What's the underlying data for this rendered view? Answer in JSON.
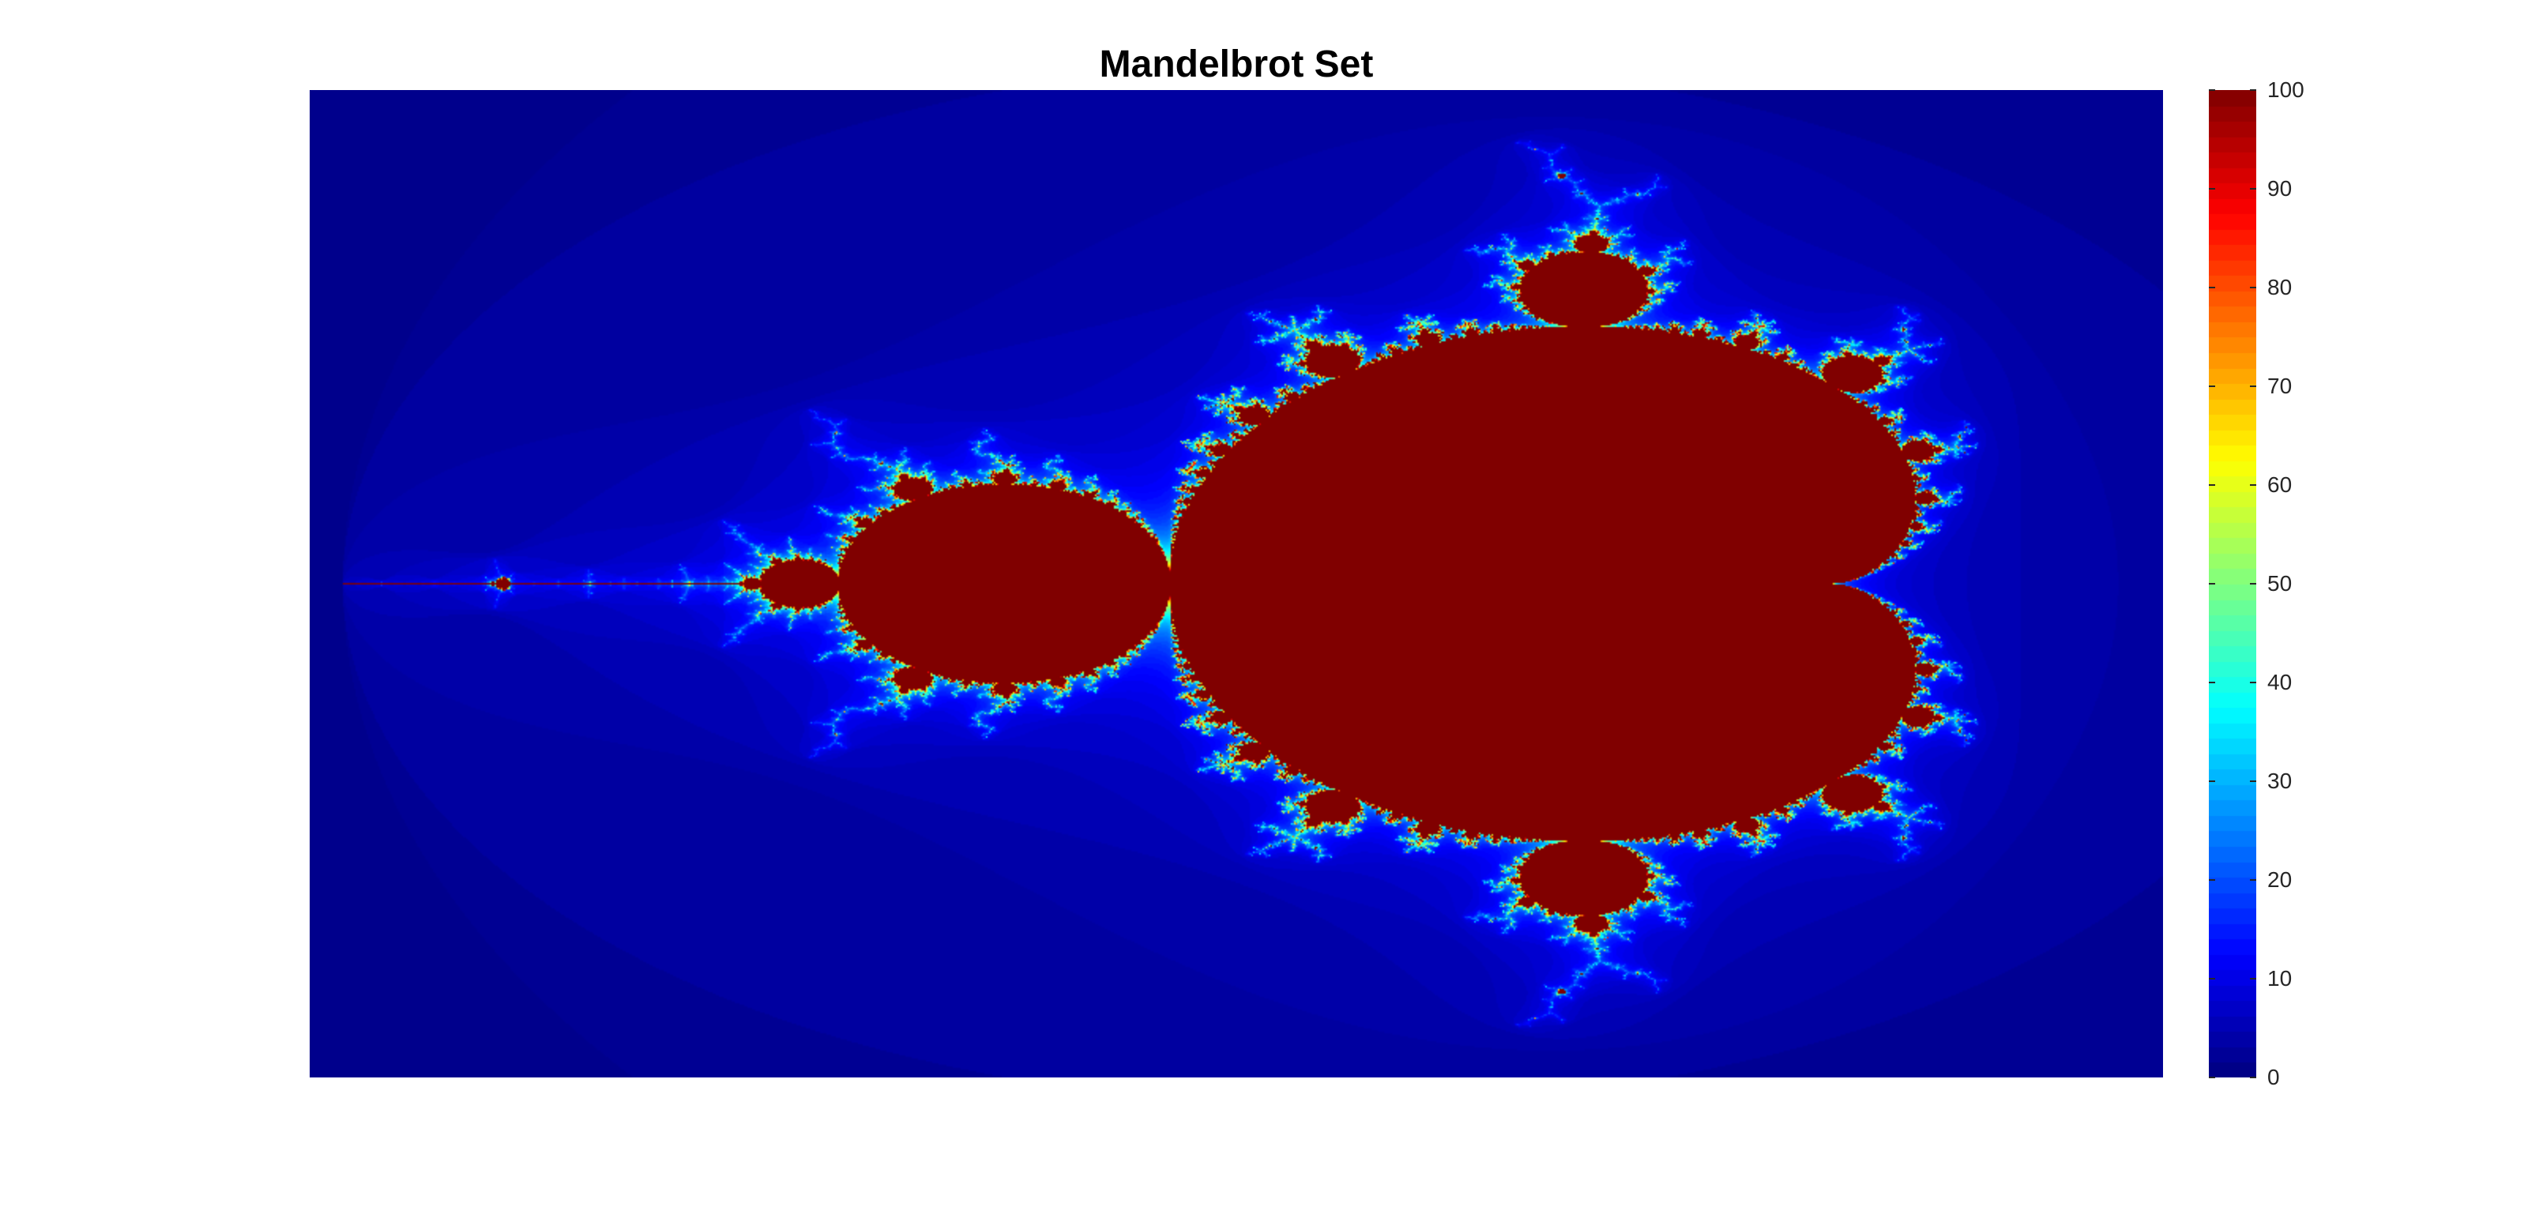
{
  "chart_data": {
    "type": "heatmap",
    "title": "Mandelbrot Set",
    "xlabel": "",
    "ylabel": "",
    "xlim": [
      -2.05,
      0.75
    ],
    "ylim": [
      -1.25,
      1.25
    ],
    "max_iterations": 100,
    "axes_visible": false,
    "grid": false,
    "colormap": "jet",
    "colorbar": {
      "location": "right",
      "limits": [
        0,
        100
      ],
      "ticks": [
        0,
        10,
        20,
        30,
        40,
        50,
        60,
        70,
        80,
        90,
        100
      ],
      "tick_labels": [
        "0",
        "10",
        "20",
        "30",
        "40",
        "50",
        "60",
        "70",
        "80",
        "90",
        "100"
      ]
    }
  },
  "colors": {
    "background": "#ffffff",
    "interior": "#800000",
    "exterior": "#00008f",
    "tick_text": "#262626"
  }
}
